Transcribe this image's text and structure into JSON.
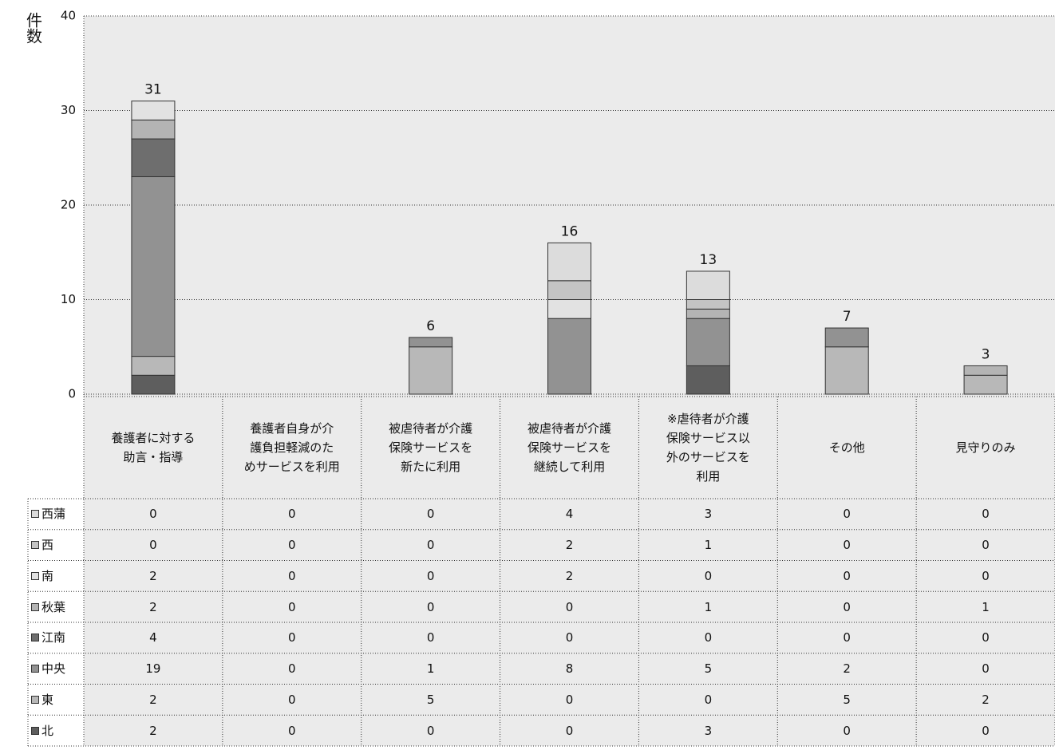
{
  "chart_data": {
    "type": "stacked_bar",
    "y_label": "件数",
    "categories": [
      "養護者に対する\n助言・指導",
      "養護者自身が介\n護負担軽減のた\nめサービスを利用",
      "被虐待者が介護\n保険サービスを\n新たに利用",
      "被虐待者が介護\n保険サービスを\n継続して利用",
      "※虐待者が介護\n保険サービス以\n外のサービスを\n利用",
      "その他",
      "見守りのみ"
    ],
    "series": [
      {
        "name": "西蒲",
        "color": "#dcdcdc",
        "values": [
          0,
          0,
          0,
          4,
          3,
          0,
          0
        ]
      },
      {
        "name": "西",
        "color": "#c4c4c4",
        "values": [
          0,
          0,
          0,
          2,
          1,
          0,
          0
        ]
      },
      {
        "name": "南",
        "color": "#e2e2e2",
        "values": [
          2,
          0,
          0,
          2,
          0,
          0,
          0
        ]
      },
      {
        "name": "秋葉",
        "color": "#b4b4b4",
        "values": [
          2,
          0,
          0,
          0,
          1,
          0,
          1
        ]
      },
      {
        "name": "江南",
        "color": "#6e6e6e",
        "values": [
          4,
          0,
          0,
          0,
          0,
          0,
          0
        ]
      },
      {
        "name": "中央",
        "color": "#929292",
        "values": [
          19,
          0,
          1,
          8,
          5,
          2,
          0
        ]
      },
      {
        "name": "東",
        "color": "#b8b8b8",
        "values": [
          2,
          0,
          5,
          0,
          0,
          5,
          2
        ]
      },
      {
        "name": "北",
        "color": "#5e5e5e",
        "values": [
          2,
          0,
          0,
          0,
          3,
          0,
          0
        ]
      }
    ],
    "totals": [
      31,
      null,
      6,
      16,
      13,
      7,
      3
    ],
    "ylim": [
      0,
      40
    ],
    "yticks": [
      0,
      10,
      20,
      30,
      40
    ],
    "grid": true
  }
}
